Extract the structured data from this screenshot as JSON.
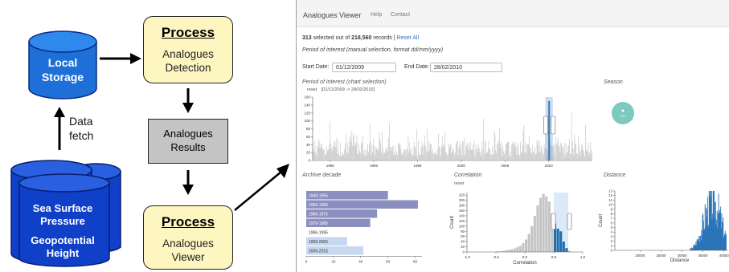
{
  "diagram": {
    "local_storage": {
      "line1": "Local",
      "line2": "Storage"
    },
    "data_fetch": {
      "line1": "Data",
      "line2": "fetch"
    },
    "database": {
      "line1": "Sea Surface",
      "line2": "Pressure",
      "line3": "Geopotential",
      "line4": "Height"
    },
    "process_detection": {
      "title": "Process",
      "line1": "Analogues",
      "line2": "Detection"
    },
    "results": {
      "line1": "Analogues",
      "line2": "Results"
    },
    "process_viewer": {
      "title": "Process",
      "line1": "Analogues",
      "line2": "Viewer"
    }
  },
  "colors": {
    "process_fill": "#fdf6c0",
    "results_fill": "#c4c4c4",
    "db_blue": "#1040c8",
    "local_blue": "#1e70d8"
  },
  "app": {
    "title": "Analogues Viewer",
    "nav": [
      "Help",
      "Contact"
    ],
    "selected_count": "313",
    "selected_text": " selected out of ",
    "total_count": "218,560",
    "records_text": " records | ",
    "reset_all": "Reset All",
    "period_hint": "Period of interest (manual selection, format dd/mm/yyyy)",
    "start_label": "Start Date:",
    "start_value": "01/12/2009",
    "end_label": "End Date:",
    "end_value": "28/02/2010",
    "poi_chart_title": "Period of interest (chart selection)",
    "poi_reset": "reset",
    "poi_range": "[01/12/2009 -> 28/02/2010]",
    "season_title": "Season",
    "season_label": "DJF",
    "archive_title": "Archive decade",
    "correlation_title": "Correlation",
    "correlation_reset": "reset",
    "distance_title": "Distance"
  },
  "chart_data": [
    {
      "type": "line",
      "title": "Period of interest (chart selection)",
      "x_ticks": [
        "1985",
        "1990",
        "1995",
        "2000",
        "2005",
        "2010"
      ],
      "y_ticks": [
        0,
        20,
        40,
        60,
        80,
        100,
        120,
        140,
        160
      ],
      "ylim": [
        0,
        160
      ]
    },
    {
      "type": "bar",
      "title": "Archive decade",
      "orientation": "horizontal",
      "categories": [
        "1948-1955",
        "1956-1965",
        "1966-1975",
        "1976-1985",
        "1986-1995",
        "1996-2005",
        "2006-2015"
      ],
      "values": [
        60,
        82,
        52,
        47,
        0,
        30,
        42
      ],
      "x_ticks": [
        0,
        20,
        40,
        60,
        80
      ],
      "xlim": [
        0,
        85
      ]
    },
    {
      "type": "bar",
      "title": "Correlation",
      "xlabel": "Correlation",
      "ylabel": "Count",
      "x_ticks": [
        "-1.0",
        "-0.5",
        "0.0",
        "0.5",
        "1.0"
      ],
      "y_ticks": [
        0,
        20,
        40,
        60,
        80,
        100,
        120,
        140,
        160,
        180,
        200,
        220
      ],
      "ylim": [
        0,
        230
      ],
      "bins_x": [
        -0.55,
        -0.5,
        -0.45,
        -0.4,
        -0.35,
        -0.3,
        -0.25,
        -0.2,
        -0.15,
        -0.1,
        -0.05,
        0.0,
        0.05,
        0.1,
        0.15,
        0.2,
        0.25,
        0.3,
        0.35,
        0.4,
        0.45,
        0.5,
        0.55,
        0.6,
        0.65,
        0.7,
        0.75
      ],
      "bins_y": [
        1,
        2,
        3,
        4,
        6,
        8,
        10,
        14,
        18,
        24,
        34,
        48,
        70,
        100,
        140,
        180,
        210,
        225,
        215,
        195,
        150,
        110,
        90,
        80,
        40,
        15,
        4
      ],
      "selected_range": [
        0.5,
        0.75
      ]
    },
    {
      "type": "bar",
      "title": "Distance",
      "xlabel": "Distance",
      "ylabel": "Count",
      "x_ticks": [
        "20000",
        "25000",
        "30000",
        "35000",
        "40000"
      ],
      "y_ticks": [
        0,
        1,
        2,
        3,
        4,
        5,
        6,
        7,
        8,
        9,
        10,
        11,
        12,
        13
      ],
      "ylim": [
        0,
        13
      ]
    }
  ]
}
